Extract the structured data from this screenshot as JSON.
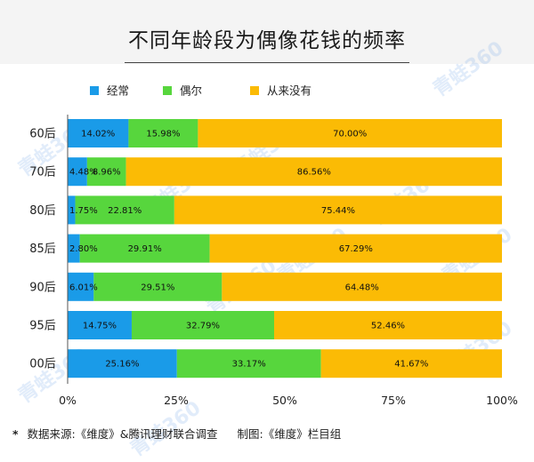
{
  "title": "不同年龄段为偶像花钱的频率",
  "footer": {
    "star": "*",
    "source": "数据来源:《维度》&腾讯理财联合调查",
    "credit": "制图:《维度》栏目组"
  },
  "watermark": "青蛙360",
  "chart_data": {
    "type": "bar",
    "orientation": "horizontal",
    "stacked": true,
    "categories": [
      "60后",
      "70后",
      "80后",
      "85后",
      "90后",
      "95后",
      "00后"
    ],
    "series": [
      {
        "name": "经常",
        "color": "#1a9be8",
        "values": [
          14.02,
          4.48,
          1.75,
          2.8,
          6.01,
          14.75,
          25.16
        ]
      },
      {
        "name": "偶尔",
        "color": "#57d63d",
        "values": [
          15.98,
          8.96,
          22.81,
          29.91,
          29.51,
          32.79,
          33.17
        ]
      },
      {
        "name": "从来没有",
        "color": "#fbbb05",
        "values": [
          70.0,
          86.56,
          75.44,
          67.29,
          64.48,
          52.46,
          41.67
        ]
      }
    ],
    "value_labels": [
      [
        "14.02%",
        "15.98%",
        "70.00%"
      ],
      [
        "4.48%",
        "8.96%",
        "86.56%"
      ],
      [
        "1.75%",
        "22.81%",
        "75.44%"
      ],
      [
        "2.80%",
        "29.91%",
        "67.29%"
      ],
      [
        "6.01%",
        "29.51%",
        "64.48%"
      ],
      [
        "14.75%",
        "32.79%",
        "52.46%"
      ],
      [
        "25.16%",
        "33.17%",
        "41.67%"
      ]
    ],
    "x_ticks": [
      "0%",
      "25%",
      "50%",
      "75%",
      "100%"
    ],
    "xlim": [
      0,
      100
    ],
    "legend_position": "top-left",
    "grid": false
  }
}
